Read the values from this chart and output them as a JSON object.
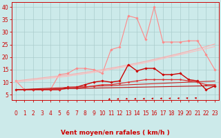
{
  "background_color": "#cceaea",
  "grid_color": "#aacccc",
  "xlabel": "Vent moyen/en rafales ( km/h )",
  "xlabel_color": "#cc0000",
  "xlabel_fontsize": 6.5,
  "tick_color": "#cc0000",
  "tick_fontsize": 5.5,
  "xlim": [
    -0.5,
    23.5
  ],
  "ylim": [
    3,
    42
  ],
  "yticks": [
    5,
    10,
    15,
    20,
    25,
    30,
    35,
    40
  ],
  "xticks": [
    0,
    1,
    2,
    3,
    4,
    5,
    6,
    7,
    8,
    9,
    10,
    11,
    12,
    13,
    14,
    15,
    16,
    17,
    18,
    19,
    20,
    21,
    22,
    23
  ],
  "series": [
    {
      "name": "light_peaked",
      "color": "#ff8888",
      "linewidth": 0.8,
      "marker": "D",
      "markersize": 1.8,
      "y": [
        10.5,
        7,
        7,
        7,
        7,
        13,
        13.5,
        15.5,
        15.5,
        15,
        13.5,
        23,
        24,
        36.5,
        35.5,
        27,
        40,
        26,
        26,
        26,
        26.5,
        26.5,
        21,
        15
      ]
    },
    {
      "name": "light_linear1",
      "color": "#ffaaaa",
      "linewidth": 0.8,
      "marker": null,
      "markersize": 0,
      "y": [
        10.5,
        10.9,
        11.3,
        11.7,
        12.1,
        12.5,
        12.9,
        13.4,
        13.9,
        14.4,
        15.0,
        15.6,
        16.2,
        16.9,
        17.6,
        18.3,
        19.1,
        19.9,
        20.7,
        21.5,
        22.4,
        23.3,
        24.2,
        25.2
      ]
    },
    {
      "name": "light_linear2",
      "color": "#ffbbbb",
      "linewidth": 0.8,
      "marker": null,
      "markersize": 0,
      "y": [
        10.0,
        10.4,
        10.8,
        11.2,
        11.6,
        12.0,
        12.4,
        12.9,
        13.4,
        13.9,
        14.5,
        15.1,
        15.7,
        16.4,
        17.1,
        17.8,
        18.6,
        19.4,
        20.2,
        21.0,
        21.8,
        22.6,
        23.4,
        24.2
      ]
    },
    {
      "name": "dark_peaked",
      "color": "#cc0000",
      "linewidth": 1.0,
      "marker": "D",
      "markersize": 1.8,
      "y": [
        7,
        7,
        7,
        7,
        7,
        7,
        8,
        8,
        9,
        10,
        10.5,
        10,
        10.5,
        17,
        14.5,
        15.5,
        15.5,
        13,
        13,
        13.5,
        11,
        10.5,
        7,
        8.5
      ]
    },
    {
      "name": "dark_medium",
      "color": "#dd3333",
      "linewidth": 0.9,
      "marker": "D",
      "markersize": 1.5,
      "y": [
        7,
        7,
        7,
        7,
        7,
        7,
        7.5,
        7.5,
        8,
        8.5,
        9,
        9,
        9.5,
        10,
        10.5,
        11,
        11,
        11,
        11,
        11,
        10.5,
        10,
        9,
        9
      ]
    },
    {
      "name": "dark_linear1",
      "color": "#cc2222",
      "linewidth": 0.8,
      "marker": null,
      "markersize": 0,
      "y": [
        7,
        7.15,
        7.3,
        7.45,
        7.6,
        7.75,
        7.9,
        8.05,
        8.2,
        8.35,
        8.5,
        8.65,
        8.8,
        8.95,
        9.1,
        9.25,
        9.4,
        9.55,
        9.7,
        9.85,
        10.0,
        10.15,
        10.3,
        10.45
      ]
    },
    {
      "name": "dark_linear2",
      "color": "#bb1111",
      "linewidth": 0.8,
      "marker": null,
      "markersize": 0,
      "y": [
        7,
        7.07,
        7.14,
        7.21,
        7.28,
        7.35,
        7.42,
        7.49,
        7.56,
        7.63,
        7.7,
        7.77,
        7.84,
        7.91,
        7.98,
        8.05,
        8.12,
        8.19,
        8.26,
        8.33,
        8.4,
        8.47,
        8.54,
        8.61
      ]
    }
  ],
  "arrow_color": "#cc0000",
  "arrow_angles_deg": [
    200,
    210,
    220,
    230,
    215,
    210,
    215,
    215,
    220,
    230,
    240,
    250,
    255,
    260,
    258,
    262,
    268,
    270,
    272,
    275,
    278,
    280,
    200,
    200
  ]
}
